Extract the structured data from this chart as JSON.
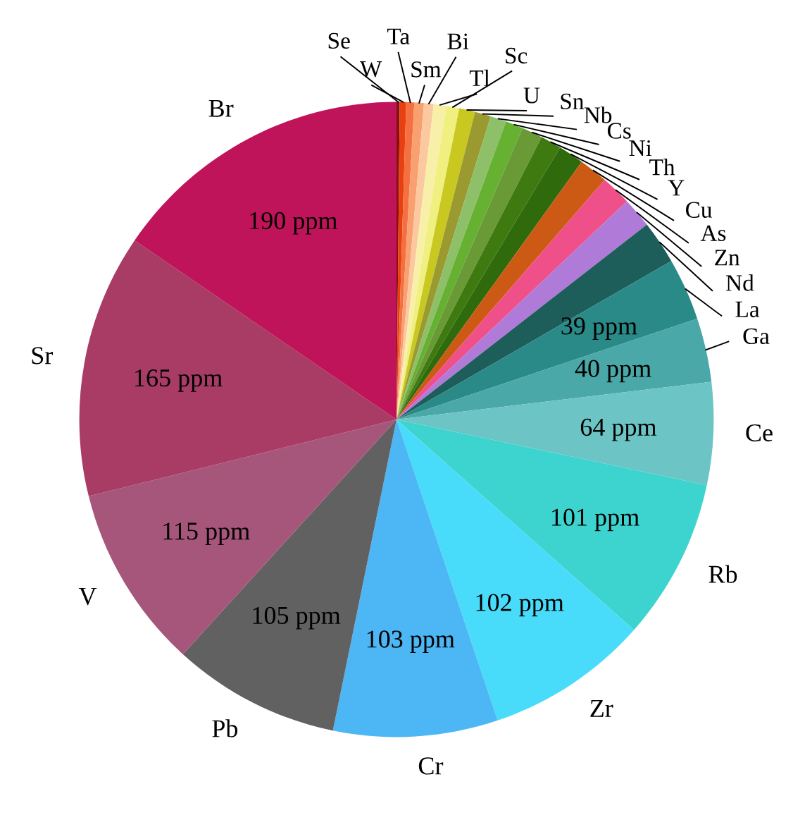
{
  "chart_data": {
    "type": "pie",
    "categories": [
      "Se",
      "W",
      "Ta",
      "Sm",
      "Bi",
      "Tl",
      "Sc",
      "U",
      "Sn",
      "Nb",
      "Cs",
      "Ni",
      "Th",
      "Y",
      "Cu",
      "As",
      "Zn",
      "Nd",
      "La",
      "Ga",
      "Ce",
      "Rb",
      "Zr",
      "Cr",
      "Pb",
      "V",
      "Sr",
      "Br"
    ],
    "values": [
      2,
      4,
      5,
      6,
      6,
      8,
      8,
      10,
      10,
      10,
      11,
      13,
      13,
      16,
      18,
      19,
      19,
      27,
      39,
      40,
      64,
      101,
      102,
      103,
      105,
      115,
      165,
      190
    ],
    "value_labels": [
      null,
      null,
      null,
      null,
      null,
      null,
      null,
      null,
      null,
      null,
      null,
      null,
      null,
      null,
      null,
      null,
      null,
      null,
      "39 ppm",
      "40 ppm",
      "64 ppm",
      "101 ppm",
      "102 ppm",
      "103 ppm",
      "105 ppm",
      "115 ppm",
      "165 ppm",
      "190 ppm"
    ],
    "colors": [
      "#8a1010",
      "#e84010",
      "#f47040",
      "#f8a070",
      "#fcc8a0",
      "#f8f0a8",
      "#f0f080",
      "#c8c820",
      "#9a9a30",
      "#8ec06a",
      "#66b032",
      "#6a9a36",
      "#3e7a10",
      "#2f6a0c",
      "#cc5a14",
      "#f0508a",
      "#b07ad8",
      "#1e5e5a",
      "#2a8a88",
      "#4aa8a8",
      "#6cc4c4",
      "#3dd4cf",
      "#48dcfa",
      "#4db6f5",
      "#616161",
      "#a6567a",
      "#a83c64",
      "#c0145a"
    ]
  }
}
